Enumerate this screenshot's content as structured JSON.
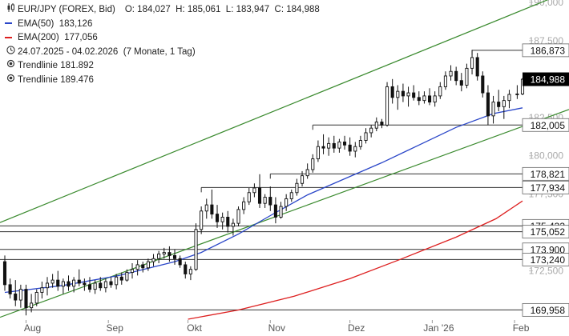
{
  "legend": {
    "instrument": "EUR/JPY (FOREX, Bid)",
    "ohlc": "O: 184,027  H: 185,061  L: 183,947  C: 184,988",
    "ema50_label": "EMA(50)",
    "ema50_value": "183,126",
    "ema200_label": "EMA(200)",
    "ema200_value": "177,056",
    "period": "24.07.2025 - 04.02.2026",
    "period_detail": "(7 Monate, 1 Tag)",
    "trend1_label": "Trendlinie",
    "trend1_value": "181.892",
    "trend2_label": "Trendlinie",
    "trend2_value": "189.476"
  },
  "colors": {
    "candle": "#111111",
    "ema50": "#2a46c8",
    "ema200": "#dd1f1f",
    "channel": "#3a8a2e",
    "level": "#333333",
    "label_bg": "#ffffff",
    "price_label_bg": "#000000",
    "price_label_fg": "#ffffff",
    "grid_text": "#a9a9a9"
  },
  "chart_data": {
    "type": "candlestick",
    "x_axis_labels": [
      "Aug",
      "Sep",
      "Okt",
      "Nov",
      "Dez",
      "Jan '26",
      "Feb"
    ],
    "x_range": [
      "2025-07-24",
      "2026-02-04"
    ],
    "y_axis": {
      "ticks": [
        "190,000",
        "187,500",
        "185,000",
        "182,500",
        "180,000",
        "177,500",
        "175,000",
        "172,500"
      ],
      "ylim": [
        169.3,
        190.15
      ],
      "position": "right"
    },
    "last_price": "184,988",
    "horizontal_levels": [
      {
        "label": "186,873",
        "value": 186.873
      },
      {
        "label": "182,005",
        "value": 182.005
      },
      {
        "label": "178,821",
        "value": 178.821
      },
      {
        "label": "177,934",
        "value": 177.934
      },
      {
        "label": "175,433",
        "value": 175.433
      },
      {
        "label": "175,052",
        "value": 175.052
      },
      {
        "label": "173,900",
        "value": 173.9
      },
      {
        "label": "173,240",
        "value": 173.24
      },
      {
        "label": "169,958",
        "value": 169.958
      }
    ],
    "channel_lines": [
      {
        "name": "Trendlinie 189.476",
        "from": [
          "2025-07-24",
          175.52
        ],
        "to": [
          "2026-02-04",
          189.476
        ]
      },
      {
        "name": "Trendlinie 181.892",
        "from": [
          "2025-07-24",
          169.36
        ],
        "to": [
          "2026-02-04",
          181.892
        ]
      }
    ],
    "series": [
      {
        "name": "EMA(50)",
        "points": [
          [
            "2025-07-24",
            171.1
          ],
          [
            "2025-08-15",
            171.55
          ],
          [
            "2025-09-05",
            172.2
          ],
          [
            "2025-09-26",
            173.1
          ],
          [
            "2025-10-06",
            173.7
          ],
          [
            "2025-10-20",
            174.9
          ],
          [
            "2025-11-01",
            176.1
          ],
          [
            "2025-11-15",
            177.45
          ],
          [
            "2025-11-29",
            178.5
          ],
          [
            "2025-12-13",
            179.55
          ],
          [
            "2025-12-27",
            180.7
          ],
          [
            "2026-01-10",
            181.85
          ],
          [
            "2026-01-24",
            182.75
          ],
          [
            "2026-02-04",
            183.126
          ]
        ]
      },
      {
        "name": "EMA(200)",
        "points": [
          [
            "2025-10-01",
            169.35
          ],
          [
            "2025-10-20",
            169.95
          ],
          [
            "2025-11-10",
            170.85
          ],
          [
            "2025-12-01",
            172.0
          ],
          [
            "2025-12-20",
            173.25
          ],
          [
            "2026-01-10",
            174.7
          ],
          [
            "2026-01-25",
            175.9
          ],
          [
            "2026-02-04",
            177.056
          ]
        ]
      }
    ],
    "ohlc": [
      [
        "2025-07-24",
        173.1,
        173.5,
        171.2,
        171.6
      ],
      [
        "2025-07-26",
        171.6,
        172.0,
        170.7,
        171.0
      ],
      [
        "2025-07-28",
        171.0,
        171.9,
        170.2,
        170.6
      ],
      [
        "2025-07-30",
        170.6,
        171.6,
        170.1,
        171.3
      ],
      [
        "2025-08-01",
        171.3,
        171.6,
        169.6,
        170.1
      ],
      [
        "2025-08-03",
        170.1,
        171.0,
        169.8,
        170.4
      ],
      [
        "2025-08-05",
        170.4,
        171.3,
        170.2,
        171.1
      ],
      [
        "2025-08-07",
        171.1,
        171.8,
        170.7,
        171.4
      ],
      [
        "2025-08-09",
        171.4,
        172.1,
        170.9,
        171.7
      ],
      [
        "2025-08-11",
        171.7,
        172.3,
        171.4,
        171.9
      ],
      [
        "2025-08-13",
        171.9,
        172.5,
        171.2,
        171.5
      ],
      [
        "2025-08-15",
        171.5,
        172.0,
        171.0,
        171.8
      ],
      [
        "2025-08-17",
        171.8,
        172.2,
        171.2,
        171.5
      ],
      [
        "2025-08-19",
        171.5,
        172.1,
        171.1,
        171.9
      ],
      [
        "2025-08-21",
        171.9,
        172.6,
        171.5,
        171.7
      ],
      [
        "2025-08-23",
        171.7,
        172.0,
        171.2,
        171.6
      ],
      [
        "2025-08-25",
        171.6,
        172.1,
        171.1,
        171.3
      ],
      [
        "2025-08-27",
        171.3,
        171.9,
        171.0,
        171.7
      ],
      [
        "2025-08-29",
        171.7,
        172.1,
        171.2,
        171.4
      ],
      [
        "2025-08-31",
        171.4,
        172.0,
        171.1,
        171.8
      ],
      [
        "2025-09-02",
        171.8,
        172.1,
        171.4,
        171.6
      ],
      [
        "2025-09-04",
        171.6,
        172.3,
        171.3,
        172.1
      ],
      [
        "2025-09-06",
        172.1,
        172.4,
        171.6,
        171.9
      ],
      [
        "2025-09-08",
        171.9,
        172.6,
        171.8,
        172.4
      ],
      [
        "2025-09-10",
        172.4,
        173.0,
        172.0,
        172.6
      ],
      [
        "2025-09-12",
        172.6,
        173.2,
        172.2,
        172.9
      ],
      [
        "2025-09-14",
        172.9,
        173.1,
        172.4,
        172.7
      ],
      [
        "2025-09-16",
        172.7,
        173.3,
        172.5,
        173.1
      ],
      [
        "2025-09-18",
        173.1,
        173.6,
        172.8,
        173.3
      ],
      [
        "2025-09-20",
        173.3,
        173.8,
        173.0,
        173.6
      ],
      [
        "2025-09-22",
        173.6,
        174.0,
        173.3,
        173.7
      ],
      [
        "2025-09-24",
        173.7,
        174.1,
        173.1,
        173.5
      ],
      [
        "2025-09-26",
        173.5,
        173.9,
        172.9,
        173.3
      ],
      [
        "2025-09-28",
        173.3,
        173.5,
        172.7,
        172.9
      ],
      [
        "2025-09-30",
        172.9,
        173.1,
        172.0,
        172.3
      ],
      [
        "2025-10-02",
        172.3,
        172.8,
        171.9,
        172.6
      ],
      [
        "2025-10-04",
        172.6,
        175.6,
        172.5,
        175.2
      ],
      [
        "2025-10-06",
        175.2,
        176.7,
        174.9,
        176.4
      ],
      [
        "2025-10-08",
        176.4,
        177.2,
        175.9,
        176.8
      ],
      [
        "2025-10-10",
        176.8,
        177.8,
        175.9,
        176.2
      ],
      [
        "2025-10-12",
        176.2,
        176.8,
        175.3,
        175.7
      ],
      [
        "2025-10-14",
        175.7,
        176.3,
        175.2,
        176.0
      ],
      [
        "2025-10-16",
        176.0,
        176.4,
        175.0,
        175.4
      ],
      [
        "2025-10-18",
        175.4,
        175.9,
        174.8,
        175.6
      ],
      [
        "2025-10-20",
        175.6,
        176.7,
        175.4,
        176.5
      ],
      [
        "2025-10-22",
        176.5,
        177.3,
        176.2,
        177.0
      ],
      [
        "2025-10-24",
        177.0,
        177.9,
        176.8,
        177.6
      ],
      [
        "2025-10-26",
        177.6,
        178.2,
        177.3,
        177.9
      ],
      [
        "2025-10-28",
        177.9,
        178.8,
        176.6,
        176.9
      ],
      [
        "2025-10-30",
        176.9,
        177.5,
        176.6,
        177.3
      ],
      [
        "2025-11-01",
        177.3,
        178.0,
        176.4,
        176.8
      ],
      [
        "2025-11-03",
        176.8,
        177.3,
        175.6,
        176.0
      ],
      [
        "2025-11-05",
        176.0,
        177.0,
        175.9,
        176.7
      ],
      [
        "2025-11-07",
        176.7,
        177.5,
        176.4,
        177.2
      ],
      [
        "2025-11-09",
        177.2,
        177.8,
        177.0,
        177.6
      ],
      [
        "2025-11-11",
        177.6,
        178.5,
        177.4,
        178.2
      ],
      [
        "2025-11-13",
        178.2,
        179.0,
        178.0,
        178.7
      ],
      [
        "2025-11-15",
        178.7,
        179.5,
        178.5,
        179.1
      ],
      [
        "2025-11-17",
        179.1,
        180.1,
        178.9,
        179.8
      ],
      [
        "2025-11-19",
        179.8,
        181.0,
        179.6,
        180.6
      ],
      [
        "2025-11-21",
        180.6,
        181.4,
        180.1,
        180.5
      ],
      [
        "2025-11-23",
        180.5,
        181.2,
        180.0,
        180.8
      ],
      [
        "2025-11-25",
        180.8,
        181.3,
        180.2,
        180.5
      ],
      [
        "2025-11-27",
        180.5,
        181.1,
        180.2,
        180.9
      ],
      [
        "2025-11-29",
        180.9,
        181.3,
        180.4,
        180.7
      ],
      [
        "2025-12-01",
        180.7,
        181.2,
        180.0,
        180.3
      ],
      [
        "2025-12-03",
        180.3,
        180.9,
        179.9,
        180.6
      ],
      [
        "2025-12-05",
        180.6,
        181.3,
        180.4,
        181.0
      ],
      [
        "2025-12-07",
        181.0,
        181.8,
        180.8,
        181.5
      ],
      [
        "2025-12-09",
        181.5,
        182.0,
        181.2,
        181.8
      ],
      [
        "2025-12-11",
        181.8,
        182.5,
        181.6,
        182.2
      ],
      [
        "2025-12-13",
        182.2,
        182.4,
        181.8,
        182.0
      ],
      [
        "2025-12-15",
        182.0,
        184.8,
        181.9,
        184.5
      ],
      [
        "2025-12-17",
        184.5,
        185.0,
        183.4,
        183.8
      ],
      [
        "2025-12-19",
        183.8,
        184.6,
        183.0,
        184.2
      ],
      [
        "2025-12-21",
        184.2,
        184.7,
        183.5,
        183.9
      ],
      [
        "2025-12-23",
        183.9,
        184.5,
        183.2,
        184.1
      ],
      [
        "2025-12-25",
        184.1,
        184.6,
        183.6,
        183.8
      ],
      [
        "2025-12-27",
        183.8,
        184.2,
        183.3,
        183.6
      ],
      [
        "2025-12-29",
        183.6,
        184.2,
        183.4,
        183.9
      ],
      [
        "2025-12-31",
        183.9,
        184.4,
        183.3,
        183.5
      ],
      [
        "2026-01-02",
        183.5,
        184.2,
        183.2,
        183.9
      ],
      [
        "2026-01-04",
        183.9,
        184.8,
        183.7,
        184.5
      ],
      [
        "2026-01-06",
        184.5,
        185.5,
        184.3,
        185.2
      ],
      [
        "2026-01-08",
        185.2,
        185.9,
        184.9,
        185.5
      ],
      [
        "2026-01-10",
        185.5,
        185.8,
        184.6,
        184.9
      ],
      [
        "2026-01-12",
        184.9,
        185.4,
        184.2,
        184.6
      ],
      [
        "2026-01-14",
        184.6,
        186.0,
        184.4,
        185.7
      ],
      [
        "2026-01-16",
        185.7,
        186.9,
        185.3,
        186.4
      ],
      [
        "2026-01-18",
        186.4,
        186.7,
        184.9,
        185.2
      ],
      [
        "2026-01-20",
        185.2,
        185.5,
        183.8,
        184.1
      ],
      [
        "2026-01-22",
        184.1,
        184.6,
        182.0,
        182.6
      ],
      [
        "2026-01-24",
        182.6,
        183.9,
        182.1,
        183.5
      ],
      [
        "2026-01-26",
        183.5,
        184.3,
        182.9,
        183.2
      ],
      [
        "2026-01-28",
        183.2,
        183.9,
        182.4,
        183.6
      ],
      [
        "2026-01-30",
        183.6,
        184.3,
        183.1,
        184.0
      ],
      [
        "2026-02-02",
        184.0,
        184.6,
        183.7,
        184.03
      ],
      [
        "2026-02-04",
        184.027,
        185.061,
        183.947,
        184.988
      ]
    ]
  }
}
